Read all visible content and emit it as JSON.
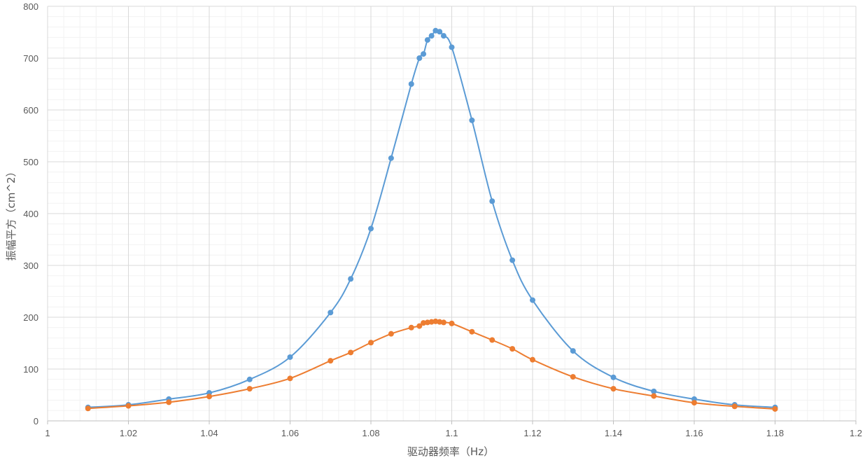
{
  "chart_data": {
    "type": "scatter",
    "title": "",
    "xlabel": "驱动器频率（Hz）",
    "ylabel": "振幅平方（cm^2）",
    "xlim": [
      1,
      1.2
    ],
    "ylim": [
      0,
      800
    ],
    "x_ticks": [
      1,
      1.02,
      1.04,
      1.06,
      1.08,
      1.1,
      1.12,
      1.14,
      1.16,
      1.18,
      1.2
    ],
    "x_tick_labels": [
      "1",
      "1.02",
      "1.04",
      "1.06",
      "1.08",
      "1.1",
      "1.12",
      "1.14",
      "1.16",
      "1.18",
      "1.2"
    ],
    "y_ticks": [
      0,
      100,
      200,
      300,
      400,
      500,
      600,
      700,
      800
    ],
    "y_tick_labels": [
      "0",
      "100",
      "200",
      "300",
      "400",
      "500",
      "600",
      "700",
      "800"
    ],
    "grid": true,
    "minor_grid": true,
    "legend": "none",
    "smooth_lines": true,
    "series": [
      {
        "color": "#5b9bd5",
        "points": [
          [
            1.01,
            26
          ],
          [
            1.02,
            31
          ],
          [
            1.03,
            42
          ],
          [
            1.04,
            54
          ],
          [
            1.05,
            80
          ],
          [
            1.06,
            123
          ],
          [
            1.07,
            209
          ],
          [
            1.075,
            274
          ],
          [
            1.08,
            371
          ],
          [
            1.085,
            507
          ],
          [
            1.09,
            650
          ],
          [
            1.092,
            700
          ],
          [
            1.093,
            708
          ],
          [
            1.094,
            735
          ],
          [
            1.095,
            743
          ],
          [
            1.096,
            753
          ],
          [
            1.097,
            751
          ],
          [
            1.098,
            743
          ],
          [
            1.1,
            721
          ],
          [
            1.105,
            580
          ],
          [
            1.11,
            424
          ],
          [
            1.115,
            310
          ],
          [
            1.12,
            233
          ],
          [
            1.13,
            135
          ],
          [
            1.14,
            84
          ],
          [
            1.15,
            57
          ],
          [
            1.16,
            42
          ],
          [
            1.17,
            31
          ],
          [
            1.18,
            26
          ]
        ]
      },
      {
        "color": "#ed7d31",
        "points": [
          [
            1.01,
            24
          ],
          [
            1.02,
            29
          ],
          [
            1.03,
            36
          ],
          [
            1.04,
            47
          ],
          [
            1.05,
            62
          ],
          [
            1.06,
            82
          ],
          [
            1.07,
            116
          ],
          [
            1.075,
            132
          ],
          [
            1.08,
            151
          ],
          [
            1.085,
            168
          ],
          [
            1.09,
            180
          ],
          [
            1.092,
            183
          ],
          [
            1.093,
            189
          ],
          [
            1.094,
            190
          ],
          [
            1.095,
            191
          ],
          [
            1.096,
            192
          ],
          [
            1.097,
            191
          ],
          [
            1.098,
            190
          ],
          [
            1.1,
            188
          ],
          [
            1.105,
            172
          ],
          [
            1.11,
            156
          ],
          [
            1.115,
            139
          ],
          [
            1.12,
            118
          ],
          [
            1.13,
            85
          ],
          [
            1.14,
            62
          ],
          [
            1.15,
            48
          ],
          [
            1.16,
            35
          ],
          [
            1.17,
            28
          ],
          [
            1.18,
            23
          ]
        ]
      }
    ]
  }
}
